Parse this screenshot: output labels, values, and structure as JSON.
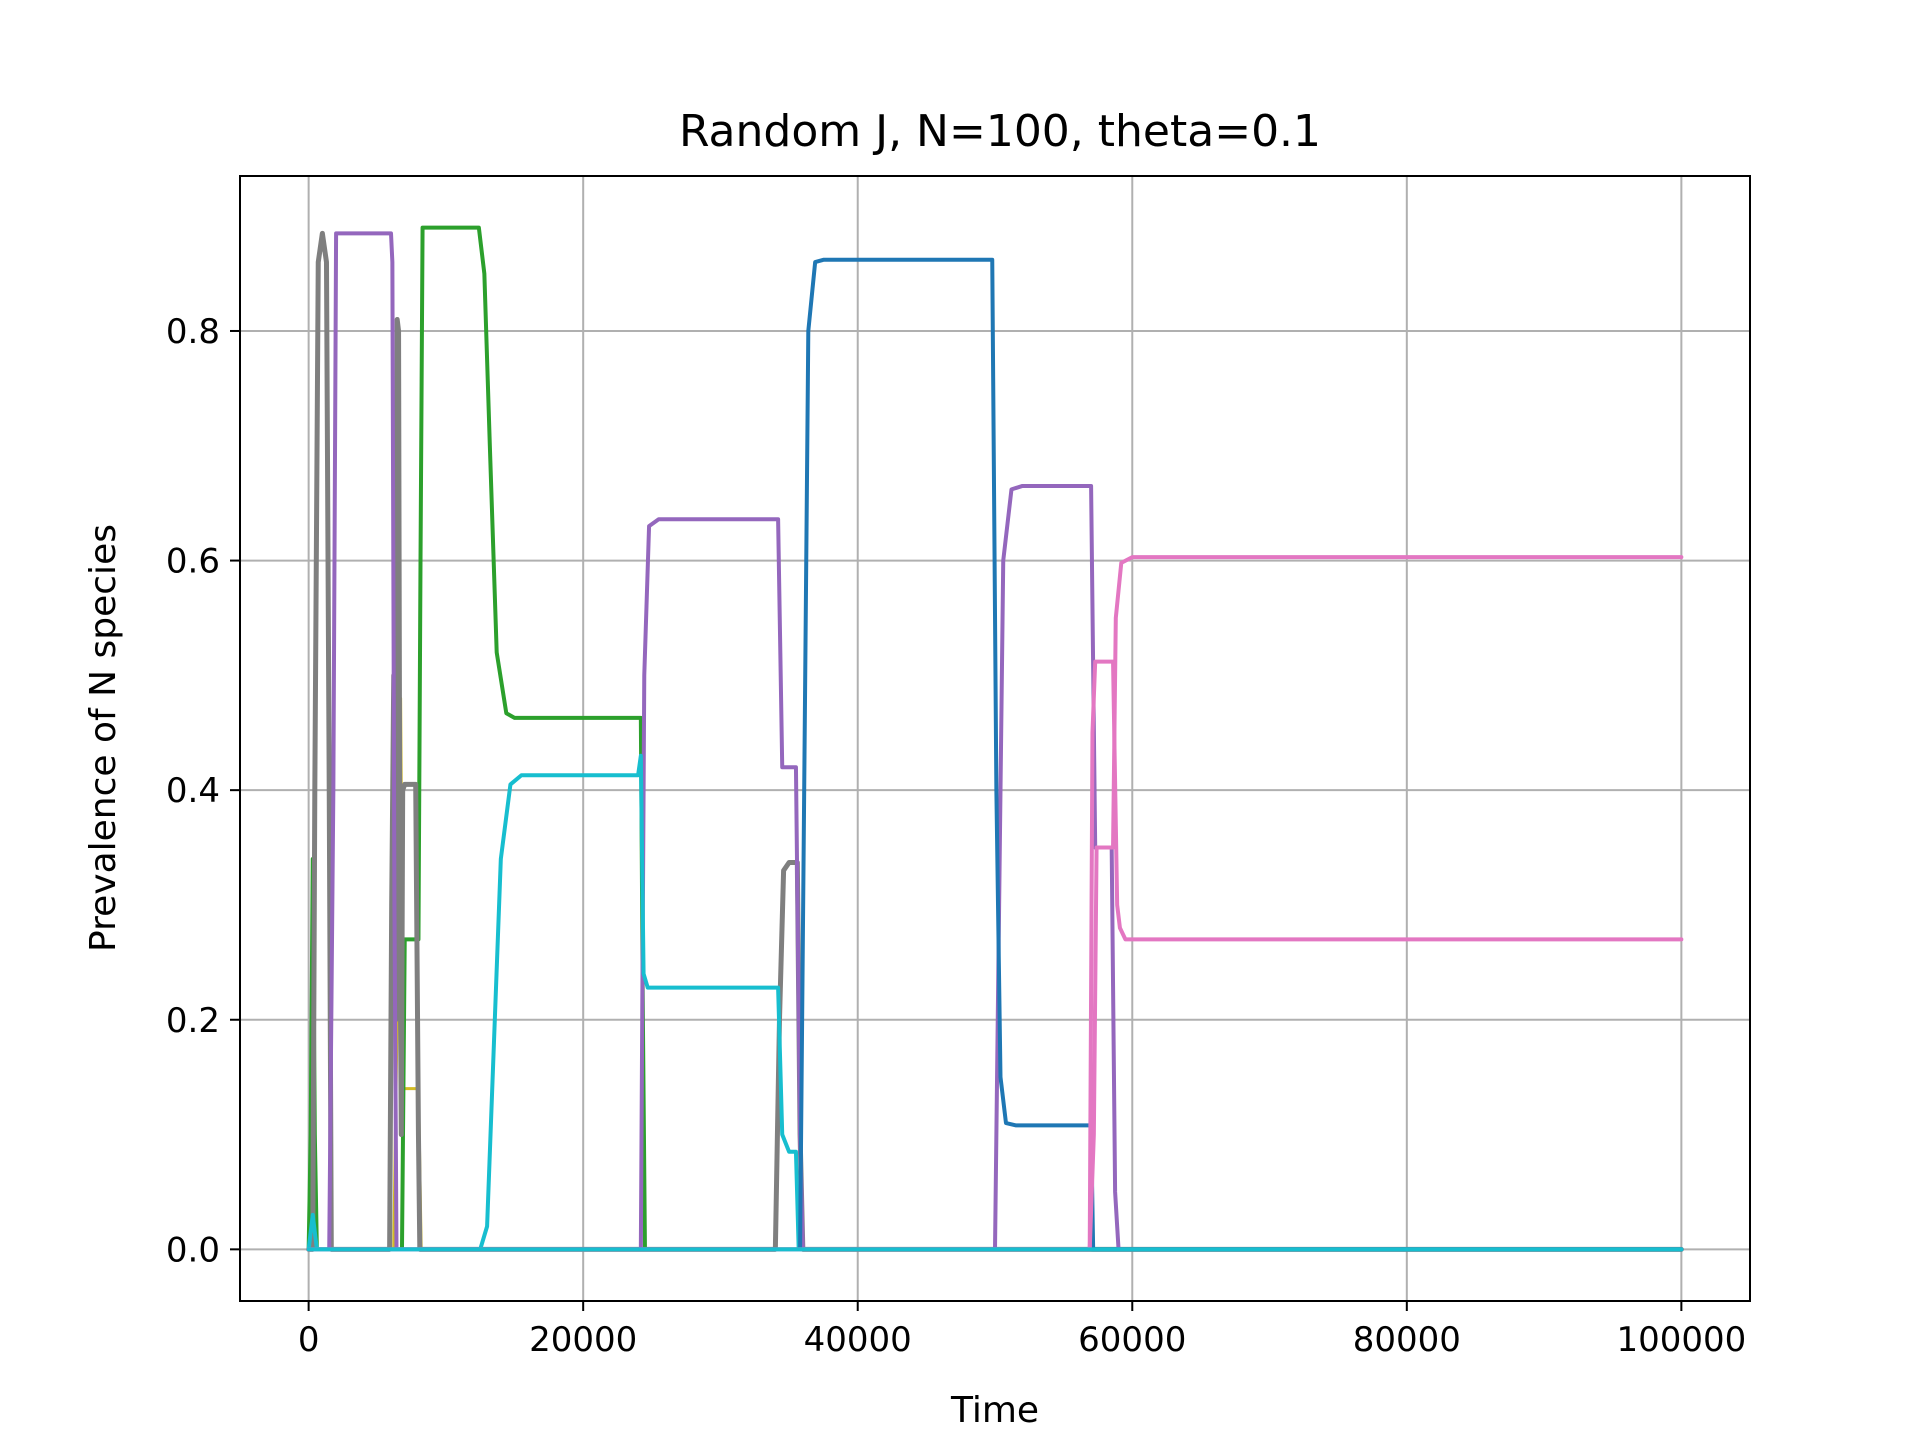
{
  "chart_data": {
    "type": "line",
    "title": "Random J, N=100, theta=0.1",
    "xlabel": "Time",
    "ylabel": "Prevalence of N species",
    "xlim": [
      -5000,
      105000
    ],
    "ylim": [
      -0.045,
      0.935
    ],
    "xticks": [
      0,
      20000,
      40000,
      60000,
      80000,
      100000
    ],
    "yticks": [
      0.0,
      0.2,
      0.4,
      0.6,
      0.8
    ],
    "xtick_labels": [
      "0",
      "20000",
      "40000",
      "60000",
      "80000",
      "100000"
    ],
    "ytick_labels": [
      "0.0",
      "0.2",
      "0.4",
      "0.6",
      "0.8"
    ],
    "grid": true,
    "series": [
      {
        "color": "#d4bc24",
        "width": 3,
        "points": [
          [
            0,
            0
          ],
          [
            150,
            0.02
          ],
          [
            300,
            0.005
          ],
          [
            600,
            0
          ],
          [
            6200,
            0
          ],
          [
            6500,
            0.25
          ],
          [
            6700,
            0.48
          ],
          [
            6900,
            0.14
          ],
          [
            8000,
            0.14
          ],
          [
            8200,
            0
          ],
          [
            100000,
            0
          ]
        ]
      },
      {
        "color": "#ff7f0e",
        "width": 3,
        "points": [
          [
            0,
            0
          ],
          [
            100,
            0.03
          ],
          [
            250,
            0.01
          ],
          [
            500,
            0
          ],
          [
            100000,
            0
          ]
        ]
      },
      {
        "color": "#2ca02c",
        "width": 4,
        "points": [
          [
            0,
            0
          ],
          [
            150,
            0.1
          ],
          [
            300,
            0.34
          ],
          [
            450,
            0.1
          ],
          [
            600,
            0
          ],
          [
            6800,
            0
          ],
          [
            7000,
            0.27
          ],
          [
            8000,
            0.27
          ],
          [
            8150,
            0.6
          ],
          [
            8300,
            0.89
          ],
          [
            12400,
            0.89
          ],
          [
            12800,
            0.85
          ],
          [
            13200,
            0.7
          ],
          [
            13700,
            0.52
          ],
          [
            14400,
            0.467
          ],
          [
            15000,
            0.463
          ],
          [
            24200,
            0.463
          ],
          [
            24350,
            0.2
          ],
          [
            24500,
            0
          ],
          [
            100000,
            0
          ]
        ]
      },
      {
        "color": "#7f7f7f",
        "width": 5,
        "points": [
          [
            0,
            0
          ],
          [
            300,
            0
          ],
          [
            450,
            0.4
          ],
          [
            700,
            0.86
          ],
          [
            1000,
            0.885
          ],
          [
            1300,
            0.86
          ],
          [
            1500,
            0.4
          ],
          [
            1650,
            0
          ],
          [
            5900,
            0
          ],
          [
            6050,
            0.3
          ],
          [
            6200,
            0.5
          ],
          [
            6350,
            0.2
          ],
          [
            6450,
            0.81
          ],
          [
            6550,
            0.8
          ],
          [
            6650,
            0.3
          ],
          [
            6750,
            0.1
          ],
          [
            6850,
            0.4
          ],
          [
            7000,
            0.405
          ],
          [
            7800,
            0.405
          ],
          [
            8000,
            0.1
          ],
          [
            8100,
            0
          ],
          [
            34000,
            0
          ],
          [
            34300,
            0.2
          ],
          [
            34600,
            0.33
          ],
          [
            35000,
            0.337
          ],
          [
            35600,
            0.337
          ],
          [
            35800,
            0.1
          ],
          [
            36000,
            0
          ],
          [
            100000,
            0
          ]
        ]
      },
      {
        "color": "#9467bd",
        "width": 4,
        "points": [
          [
            0,
            0
          ],
          [
            1500,
            0
          ],
          [
            1800,
            0.4
          ],
          [
            2000,
            0.885
          ],
          [
            6000,
            0.885
          ],
          [
            6100,
            0.86
          ],
          [
            6250,
            0.3
          ],
          [
            6400,
            0
          ],
          [
            24200,
            0
          ],
          [
            24450,
            0.5
          ],
          [
            24800,
            0.63
          ],
          [
            25500,
            0.636
          ],
          [
            34200,
            0.636
          ],
          [
            34500,
            0.42
          ],
          [
            35500,
            0.42
          ],
          [
            35800,
            0.1
          ],
          [
            36000,
            0
          ],
          [
            50000,
            0
          ],
          [
            50300,
            0.3
          ],
          [
            50600,
            0.6
          ],
          [
            51200,
            0.662
          ],
          [
            52000,
            0.665
          ],
          [
            57000,
            0.665
          ],
          [
            57300,
            0.35
          ],
          [
            58500,
            0.35
          ],
          [
            58750,
            0.05
          ],
          [
            59000,
            0
          ],
          [
            100000,
            0
          ]
        ]
      },
      {
        "color": "#17becf",
        "width": 4,
        "points": [
          [
            0,
            0
          ],
          [
            300,
            0.03
          ],
          [
            600,
            0
          ],
          [
            12500,
            0
          ],
          [
            13000,
            0.02
          ],
          [
            13500,
            0.18
          ],
          [
            14000,
            0.34
          ],
          [
            14700,
            0.405
          ],
          [
            15500,
            0.413
          ],
          [
            24000,
            0.413
          ],
          [
            24200,
            0.43
          ],
          [
            24400,
            0.24
          ],
          [
            24700,
            0.228
          ],
          [
            34200,
            0.228
          ],
          [
            34500,
            0.1
          ],
          [
            35000,
            0.085
          ],
          [
            35500,
            0.085
          ],
          [
            35700,
            0
          ],
          [
            100000,
            0
          ]
        ]
      },
      {
        "color": "#1f77b4",
        "width": 4,
        "points": [
          [
            0,
            0
          ],
          [
            35800,
            0
          ],
          [
            36100,
            0.4
          ],
          [
            36400,
            0.8
          ],
          [
            36900,
            0.86
          ],
          [
            37500,
            0.862
          ],
          [
            49800,
            0.862
          ],
          [
            50100,
            0.4
          ],
          [
            50400,
            0.15
          ],
          [
            50800,
            0.11
          ],
          [
            51500,
            0.108
          ],
          [
            57000,
            0.108
          ],
          [
            57150,
            0
          ],
          [
            100000,
            0
          ]
        ]
      },
      {
        "color": "#e377c2",
        "width": 4,
        "points": [
          [
            0,
            0
          ],
          [
            56900,
            0
          ],
          [
            57100,
            0.45
          ],
          [
            57300,
            0.512
          ],
          [
            58600,
            0.512
          ],
          [
            58900,
            0.3
          ],
          [
            59100,
            0.28
          ],
          [
            59500,
            0.27
          ],
          [
            100000,
            0.27
          ]
        ]
      },
      {
        "color": "#e377c2",
        "width": 4,
        "points": [
          [
            0,
            0
          ],
          [
            56900,
            0
          ],
          [
            57200,
            0.1
          ],
          [
            57400,
            0.35
          ],
          [
            58600,
            0.35
          ],
          [
            58800,
            0.55
          ],
          [
            59200,
            0.598
          ],
          [
            60000,
            0.603
          ],
          [
            100000,
            0.603
          ]
        ]
      },
      {
        "color": "#17becf",
        "width": 4,
        "points": [
          [
            0,
            0
          ],
          [
            100000,
            0
          ]
        ]
      }
    ]
  }
}
